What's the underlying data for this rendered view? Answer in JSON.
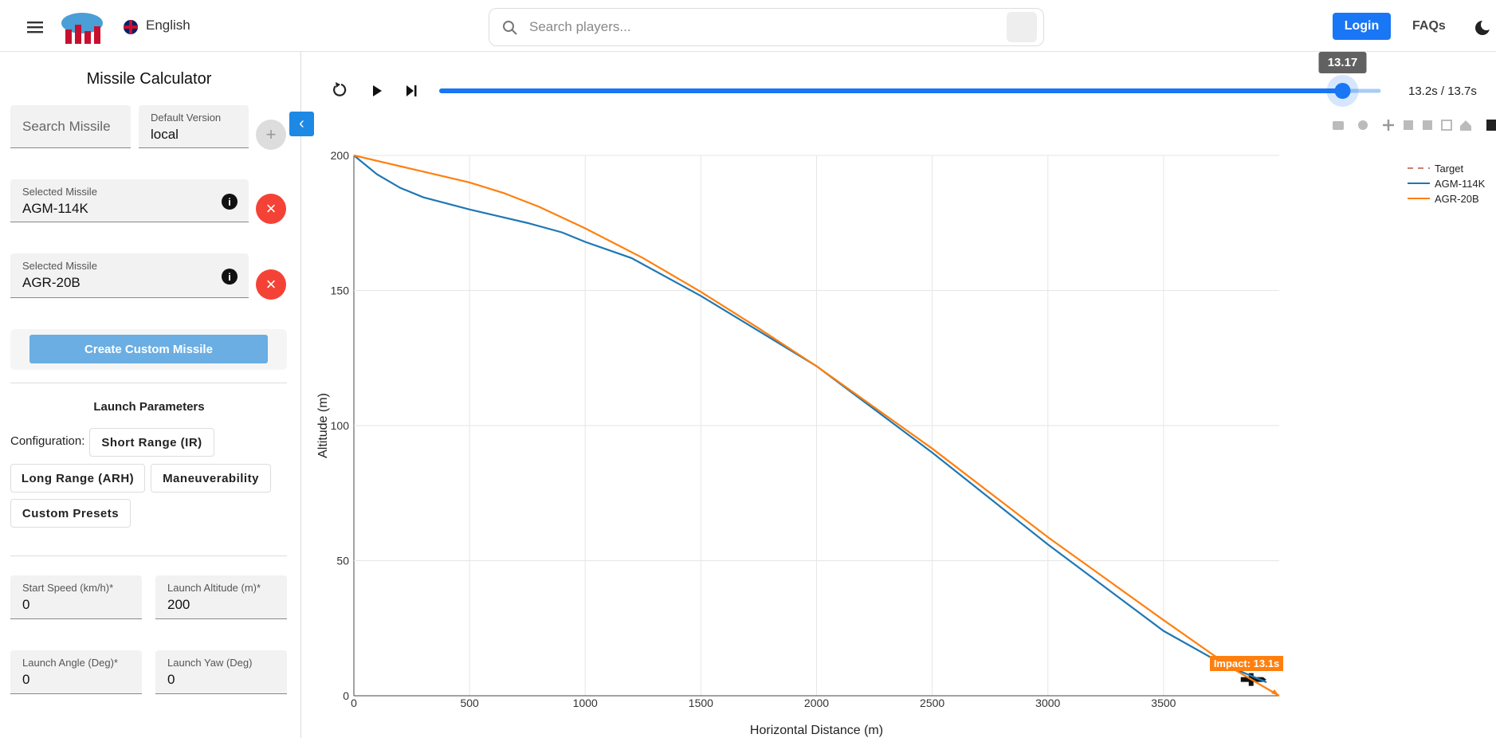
{
  "header": {
    "language": "English",
    "search_placeholder": "Search players...",
    "login": "Login",
    "faqs": "FAQs"
  },
  "sidebar": {
    "title": "Missile Calculator",
    "search_missile": "Search Missile",
    "version_label": "Default Version",
    "version_value": "local",
    "selected": [
      {
        "label": "Selected Missile",
        "value": "AGM-114K"
      },
      {
        "label": "Selected Missile",
        "value": "AGR-20B"
      }
    ],
    "create_button": "Create Custom Missile",
    "launch_title": "Launch Parameters",
    "config_label": "Configuration:",
    "presets": [
      "Short Range (IR)",
      "Long Range (ARH)",
      "Maneuverability",
      "Custom Presets"
    ],
    "fields": [
      {
        "label": "Start Speed (km/h)*",
        "value": "0"
      },
      {
        "label": "Launch Altitude (m)*",
        "value": "200"
      },
      {
        "label": "Launch Angle (Deg)*",
        "value": "0"
      },
      {
        "label": "Launch Yaw (Deg)",
        "value": "0"
      }
    ]
  },
  "player": {
    "slider": {
      "value": 13.17,
      "range": [
        0,
        13.7
      ]
    },
    "time": "13.2s / 13.7s"
  },
  "chart_data": {
    "type": "line",
    "x_label": "Horizontal Distance (m)",
    "y_label": "Altitude (m)",
    "annotation": "Impact: 13.1s",
    "xlim": [
      0,
      4000
    ],
    "ylim": [
      0,
      200
    ],
    "xticks": [
      0,
      500,
      1000,
      1500,
      2000,
      2500,
      3000,
      3500
    ],
    "yticks": [
      0,
      50,
      100,
      150,
      200
    ],
    "grid": true,
    "legend": "top-right",
    "series": [
      {
        "name": "Target",
        "color": "#c98070",
        "dash": true,
        "x": [
          3882
        ],
        "values": [
          6
        ]
      },
      {
        "name": "AGM-114K",
        "color": "#1f77b4",
        "x": [
          0,
          100,
          200,
          300,
          500,
          750,
          900,
          1000,
          1200,
          1500,
          1750,
          2000,
          2250,
          2500,
          2750,
          3000,
          3250,
          3500,
          3750,
          3945
        ],
        "values": [
          200,
          193,
          188,
          184.5,
          180,
          175,
          171.5,
          168,
          162,
          148,
          135,
          122,
          106,
          90,
          73,
          56,
          40,
          24,
          12,
          5
        ]
      },
      {
        "name": "AGR-20B",
        "color": "#ff7f0e",
        "x": [
          0,
          150,
          300,
          500,
          650,
          800,
          1000,
          1250,
          1500,
          1750,
          2000,
          2500,
          3000,
          3500,
          3800,
          4000
        ],
        "values": [
          200,
          197,
          194,
          190,
          186,
          181,
          173,
          162,
          149.5,
          136,
          122,
          91.5,
          58.7,
          28,
          10,
          0
        ]
      }
    ]
  }
}
